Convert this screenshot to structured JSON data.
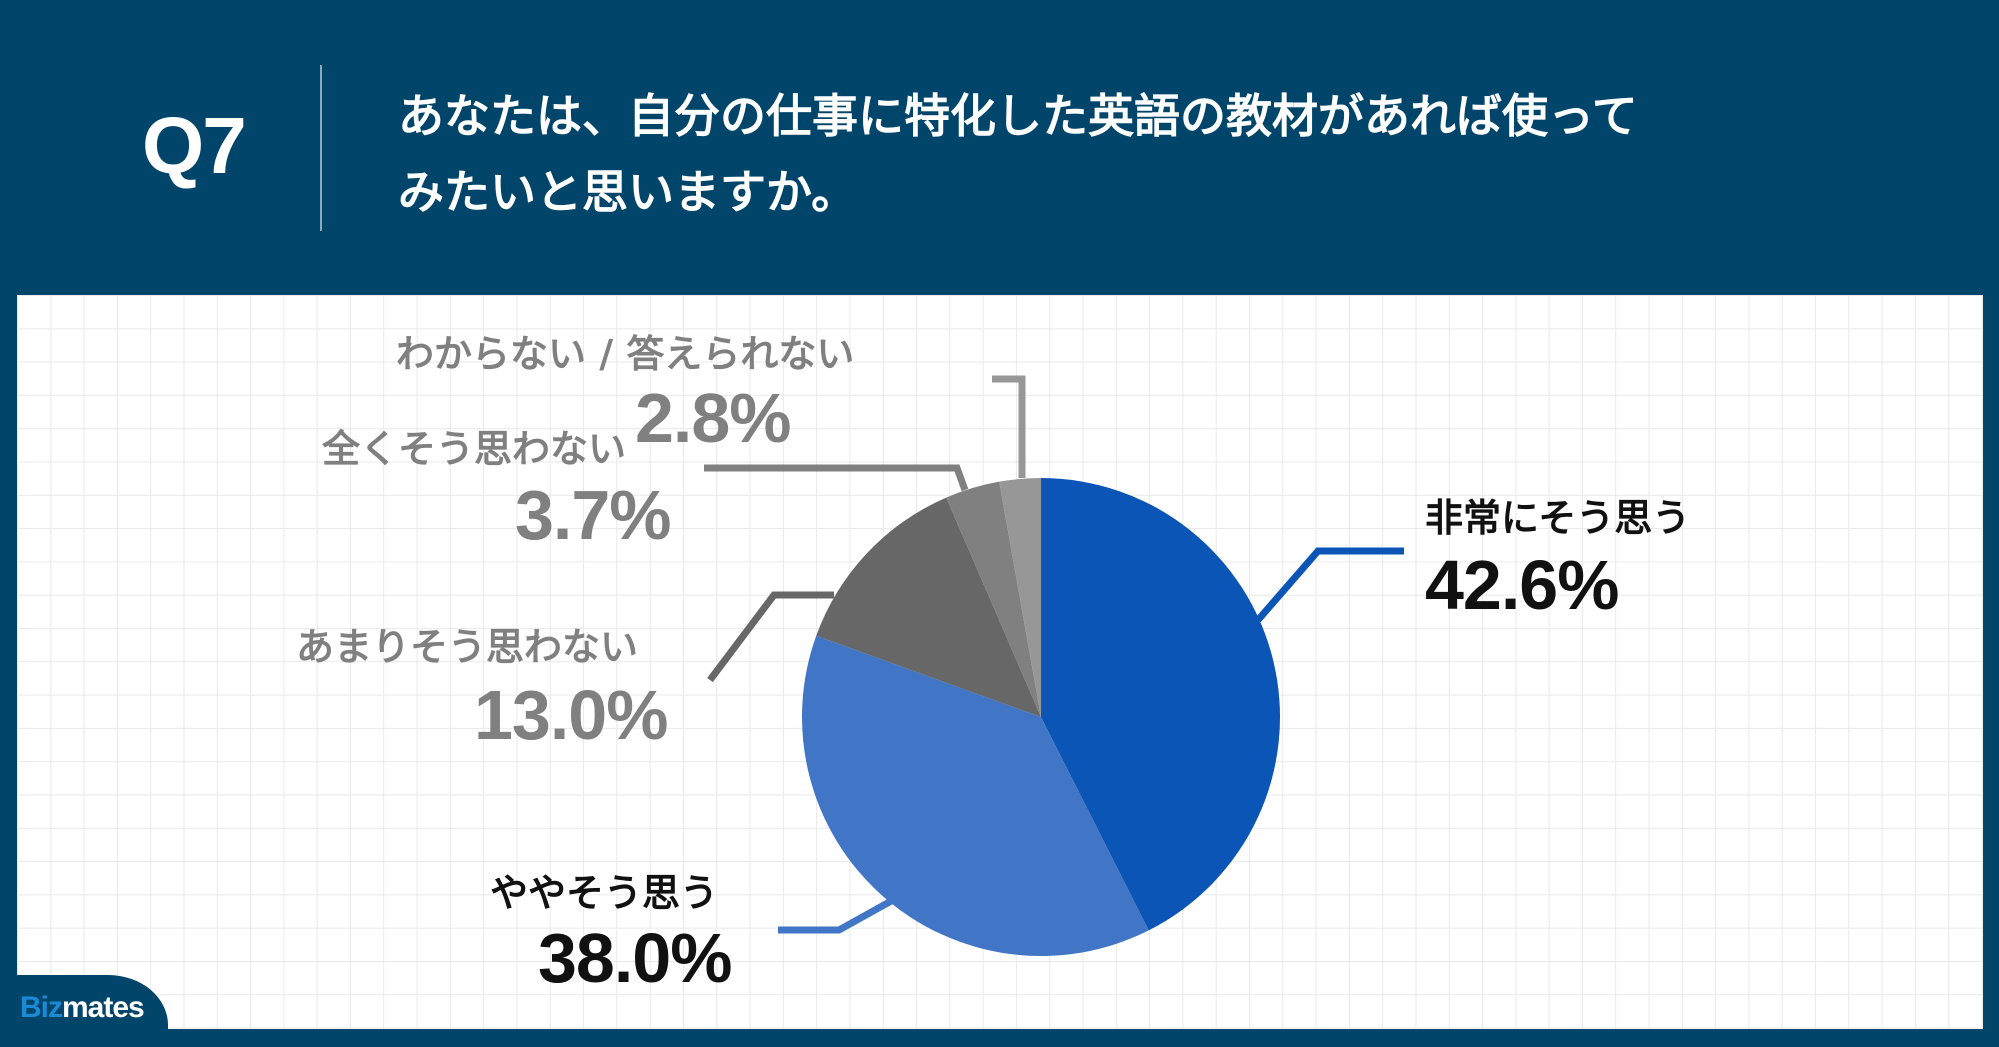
{
  "header": {
    "question_number": "Q7",
    "question_line1": "あなたは、自分の仕事に特化した英語の教材があれば使って",
    "question_line2": "みたいと思いますか。"
  },
  "brand": {
    "logo_part1": "Biz",
    "logo_part2": "mates"
  },
  "colors": {
    "background": "#02456b",
    "strongly_agree": "#0a55b5",
    "somewhat_agree": "#4175c5",
    "somewhat_disagree": "#676767",
    "strongly_disagree": "#808080",
    "dont_know": "#979797"
  },
  "labels": {
    "strongly_agree": {
      "category": "非常にそう思う",
      "value": "42.6%"
    },
    "somewhat_agree": {
      "category": "ややそう思う",
      "value": "38.0%"
    },
    "somewhat_disagree": {
      "category": "あまりそう思わない",
      "value": "13.0%"
    },
    "strongly_disagree": {
      "category": "全くそう思わない",
      "value": "3.7%"
    },
    "dont_know": {
      "category": "わからない / 答えられない",
      "value": "2.8%"
    }
  },
  "chart_data": {
    "type": "pie",
    "title": "Q7 あなたは、自分の仕事に特化した英語の教材があれば使ってみたいと思いますか。",
    "categories": [
      "非常にそう思う",
      "ややそう思う",
      "あまりそう思わない",
      "全くそう思わない",
      "わからない / 答えられない"
    ],
    "values": [
      42.6,
      38.0,
      13.0,
      3.7,
      2.8
    ],
    "unit": "%",
    "colors": [
      "#0a55b5",
      "#4175c5",
      "#676767",
      "#808080",
      "#979797"
    ],
    "start_angle": "12 o'clock, clockwise",
    "legend": "none (callout labels)"
  }
}
